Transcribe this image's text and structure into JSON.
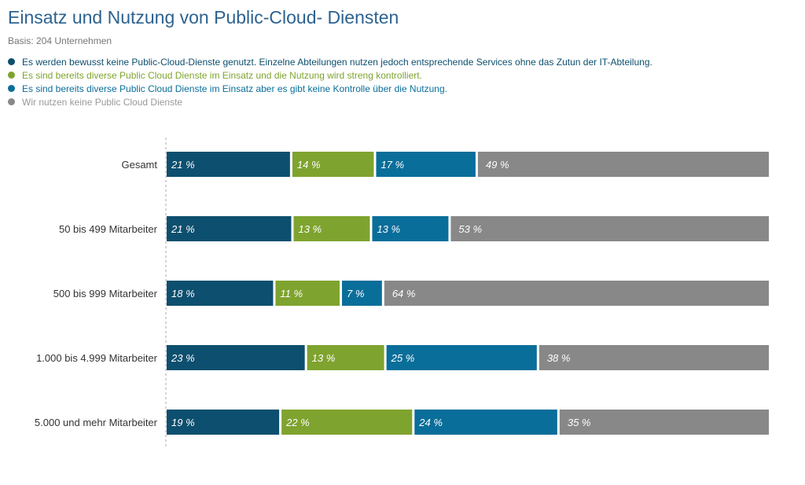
{
  "chart_data": {
    "type": "bar",
    "orientation": "horizontal",
    "stacked": true,
    "title": "Einsatz und Nutzung von Public-Cloud- Diensten",
    "subtitle": "Basis: 204 Unternehmen",
    "categories": [
      "Gesamt",
      "50 bis 499 Mitarbeiter",
      "500 bis 999 Mitarbeiter",
      "1.000 bis 4.999 Mitarbeiter",
      "5.000 und mehr Mitarbeiter"
    ],
    "unit": "%",
    "legend_placement": "top-left",
    "grid": false,
    "series": [
      {
        "name": "Es werden bewusst keine Public-Cloud-Dienste genutzt. Einzelne Abteilungen nutzen jedoch entsprechende Services ohne das Zutun der IT-Abteilung.",
        "color": "#0d4f6e",
        "values": [
          21,
          21,
          18,
          23,
          19
        ]
      },
      {
        "name": "Es sind bereits diverse Public Cloud Dienste im Einsatz und die Nutzung wird streng kontrolliert.",
        "color": "#7fa32f",
        "values": [
          14,
          13,
          11,
          13,
          22
        ]
      },
      {
        "name": "Es sind bereits diverse Public Cloud Dienste im Einsatz aber es gibt keine Kontrolle über die Nutzung.",
        "color": "#0a6e9a",
        "values": [
          17,
          13,
          7,
          25,
          24
        ]
      },
      {
        "name": "Wir nutzen keine Public Cloud Dienste",
        "color": "#888888",
        "values": [
          49,
          53,
          64,
          38,
          35
        ]
      }
    ]
  }
}
